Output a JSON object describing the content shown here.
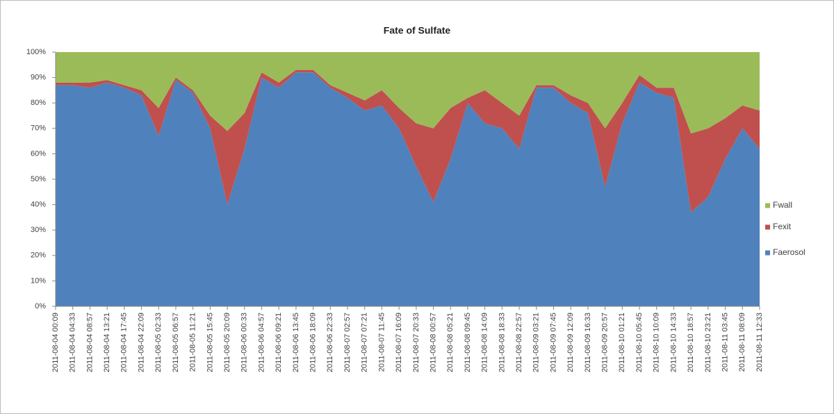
{
  "chart_data": {
    "type": "area",
    "stacked": true,
    "title": "Fate of Sulfate",
    "categories": [
      "2011-08-04 00:09",
      "2011-08-04 04:33",
      "2011-08-04 08:57",
      "2011-08-04 13:21",
      "2011-08-04 17:45",
      "2011-08-04 22:09",
      "2011-08-05 02:33",
      "2011-08-05 06:57",
      "2011-08-05 11:21",
      "2011-08-05 15:45",
      "2011-08-05 20:09",
      "2011-08-06 00:33",
      "2011-08-06 04:57",
      "2011-08-06 09:21",
      "2011-08-06 13:45",
      "2011-08-06 18:09",
      "2011-08-06 22:33",
      "2011-08-07 02:57",
      "2011-08-07 07:21",
      "2011-08-07 11:45",
      "2011-08-07 16:09",
      "2011-08-07 20:33",
      "2011-08-08 00:57",
      "2011-08-08 05:21",
      "2011-08-08 09:45",
      "2011-08-08 14:09",
      "2011-08-08 18:33",
      "2011-08-08 22:57",
      "2011-08-09 03:21",
      "2011-08-09 07:45",
      "2011-08-09 12:09",
      "2011-08-09 16:33",
      "2011-08-09 20:57",
      "2011-08-10 01:21",
      "2011-08-10 05:45",
      "2011-08-10 10:09",
      "2011-08-10 14:33",
      "2011-08-10 18:57",
      "2011-08-10 23:21",
      "2011-08-11 03:45",
      "2011-08-11 08:09",
      "2011-08-11 12:33"
    ],
    "series": [
      {
        "name": "Faerosol",
        "color": "#4f81bd",
        "values": [
          87,
          87,
          86,
          88,
          86,
          83,
          67,
          89,
          84,
          70,
          40,
          62,
          90,
          86,
          92,
          92,
          86,
          82,
          77,
          79,
          70,
          55,
          41,
          58,
          80,
          72,
          70,
          62,
          86,
          86,
          80,
          76,
          47,
          72,
          88,
          84,
          82,
          37,
          43,
          58,
          70,
          62
        ]
      },
      {
        "name": "Fexit",
        "color": "#c0504d",
        "values": [
          1,
          1,
          2,
          1,
          1,
          2,
          11,
          1,
          1,
          5,
          29,
          14,
          2,
          2,
          1,
          1,
          1,
          2,
          4,
          6,
          8,
          17,
          29,
          20,
          2,
          13,
          10,
          13,
          1,
          1,
          3,
          4,
          23,
          8,
          3,
          2,
          4,
          31,
          27,
          16,
          9,
          15
        ]
      },
      {
        "name": "Fwall",
        "color": "#9bbb59",
        "values": [
          12,
          12,
          12,
          11,
          13,
          15,
          22,
          10,
          15,
          25,
          31,
          24,
          8,
          12,
          7,
          7,
          13,
          16,
          19,
          15,
          22,
          28,
          30,
          22,
          18,
          15,
          20,
          25,
          13,
          13,
          17,
          20,
          30,
          20,
          9,
          14,
          14,
          32,
          30,
          26,
          21,
          23
        ]
      }
    ],
    "ylim": [
      0,
      100
    ],
    "yticks": [
      {
        "value": 0,
        "label": "0%"
      },
      {
        "value": 10,
        "label": "10%"
      },
      {
        "value": 20,
        "label": "20%"
      },
      {
        "value": 30,
        "label": "30%"
      },
      {
        "value": 40,
        "label": "40%"
      },
      {
        "value": 50,
        "label": "50%"
      },
      {
        "value": 60,
        "label": "60%"
      },
      {
        "value": 70,
        "label": "70%"
      },
      {
        "value": 80,
        "label": "80%"
      },
      {
        "value": 90,
        "label": "90%"
      },
      {
        "value": 100,
        "label": "100%"
      }
    ],
    "legend": "right"
  }
}
